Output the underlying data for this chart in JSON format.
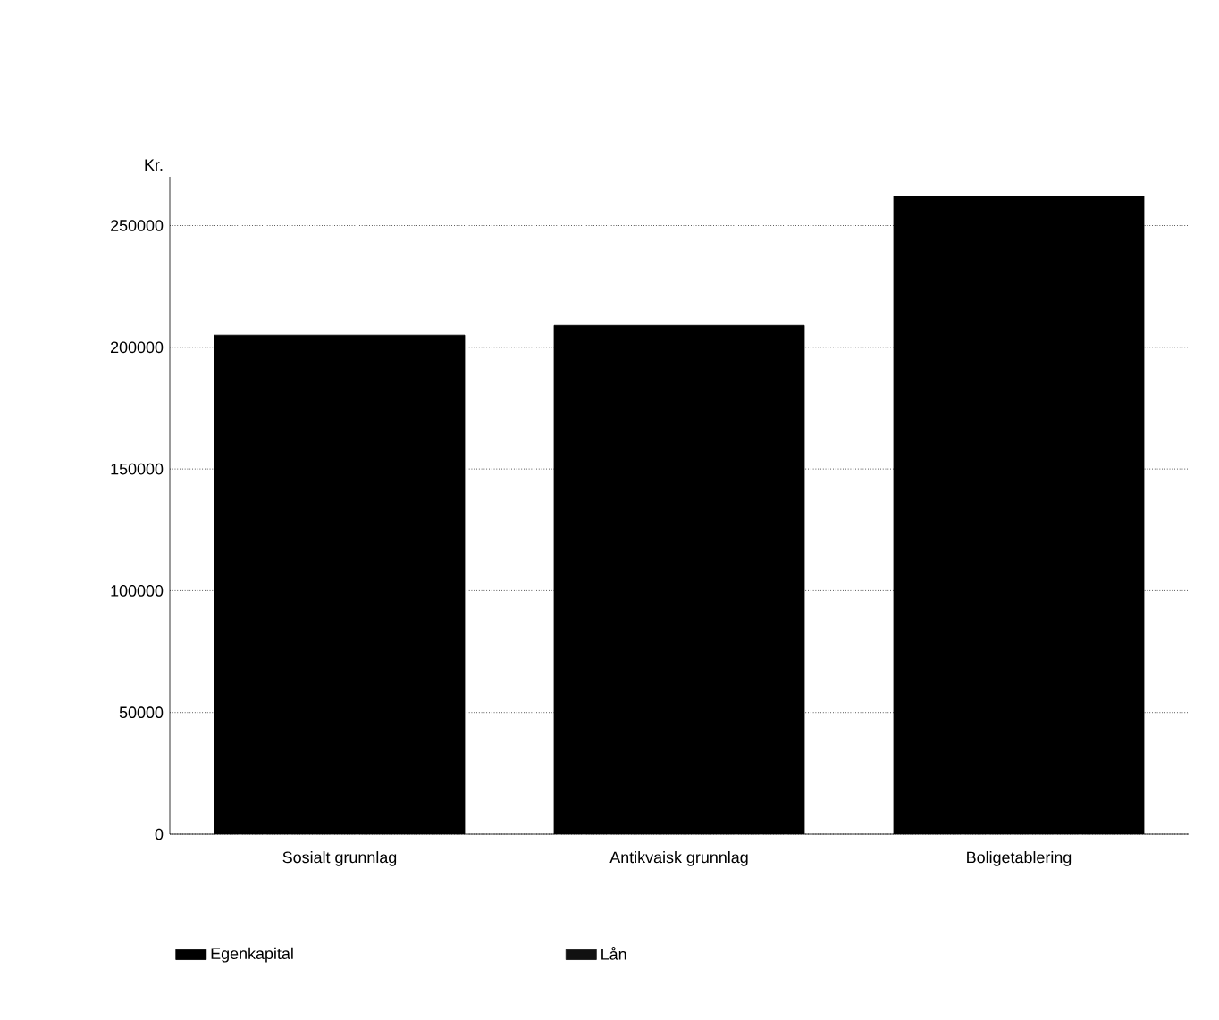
{
  "chart_data": {
    "type": "bar",
    "ylabel": "Kr.",
    "categories": [
      "Sosialt grunnlag",
      "Antikvaisk grunnlag",
      "Boligetablering"
    ],
    "series": [
      {
        "name": "Egenkapital",
        "color": "#000000",
        "values": [
          205000,
          209000,
          262000
        ]
      },
      {
        "name": "Lån",
        "color": "#111111",
        "values": [
          null,
          null,
          null
        ]
      }
    ],
    "ylim": [
      0,
      270000
    ],
    "yticks": [
      0,
      50000,
      100000,
      150000,
      200000,
      250000
    ],
    "grid": "y",
    "legend": "bottom"
  }
}
